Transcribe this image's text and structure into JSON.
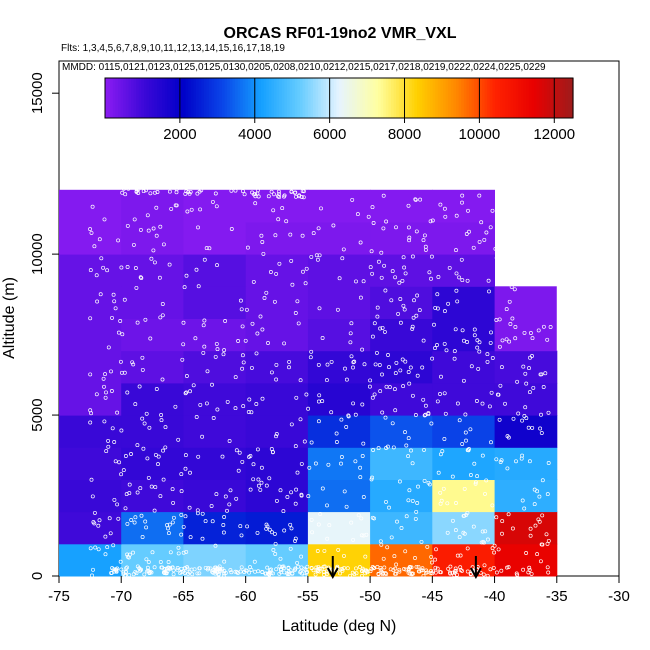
{
  "chart_data": {
    "type": "heatmap",
    "title": "ORCAS RF01-19no2 VMR_VXL",
    "flights_line": "Flts: 1,3,4,5,6,7,8,9,10,11,12,13,14,15,16,17,18,19",
    "dates_line": "MMDD: 0115,0121,0123,0125,0125,0130,0205,0208,0210,0212,0215,0217,0218,0219,0222,0224,0225,0229",
    "xlabel": "Latitude (deg N)",
    "ylabel": "Altitude (m)",
    "xlim": [
      -75,
      -30
    ],
    "ylim": [
      0,
      16000
    ],
    "x_ticks": [
      -75,
      -70,
      -65,
      -60,
      -55,
      -50,
      -45,
      -40,
      -35,
      -30
    ],
    "y_ticks": [
      0,
      5000,
      10000,
      15000
    ],
    "colorbar": {
      "range": [
        0,
        12500
      ],
      "ticks": [
        2000,
        4000,
        6000,
        8000,
        10000,
        12000
      ],
      "stops": [
        "#8c1cf2",
        "#3c08d8",
        "#0000c8",
        "#0a44e8",
        "#14a0ff",
        "#66ccff",
        "#e6f4ff",
        "#ffffa0",
        "#ffd000",
        "#ff8800",
        "#ff2200",
        "#e80000",
        "#9e1c1c"
      ]
    },
    "colors": {
      "background": "#ffffff",
      "axis": "#000000"
    },
    "x_centers": [
      -72.5,
      -67.5,
      -62.5,
      -57.5,
      -52.5,
      -47.5,
      -42.5,
      -37.5
    ],
    "y_centers": [
      500,
      1500,
      2500,
      3500,
      4500,
      5500,
      6500,
      7500,
      8500,
      9500,
      10500,
      11500
    ],
    "z": [
      [
        4200,
        5200,
        5400,
        5200,
        8300,
        9700,
        10600,
        11400
      ],
      [
        1000,
        3600,
        2600,
        2500,
        6300,
        4700,
        5500,
        11700
      ],
      [
        1100,
        1000,
        1100,
        1300,
        3600,
        4400,
        7400,
        4500
      ],
      [
        1000,
        1200,
        1200,
        1300,
        3700,
        4700,
        4300,
        4400
      ],
      [
        1100,
        1100,
        1000,
        1100,
        2800,
        3300,
        3100,
        1800
      ],
      [
        500,
        1100,
        1000,
        1100,
        1400,
        1000,
        1000,
        1000
      ],
      [
        500,
        600,
        800,
        900,
        1200,
        1300,
        1000,
        900
      ],
      [
        500,
        400,
        400,
        500,
        700,
        1100,
        1300,
        200
      ],
      [
        500,
        500,
        700,
        500,
        600,
        800,
        1300,
        200
      ],
      [
        500,
        500,
        700,
        500,
        600,
        600,
        600,
        null
      ],
      [
        100,
        200,
        100,
        200,
        200,
        200,
        200,
        null
      ],
      [
        100,
        200,
        100,
        100,
        100,
        100,
        100,
        null
      ]
    ],
    "arrows_x": [
      -53,
      -41.5
    ]
  }
}
